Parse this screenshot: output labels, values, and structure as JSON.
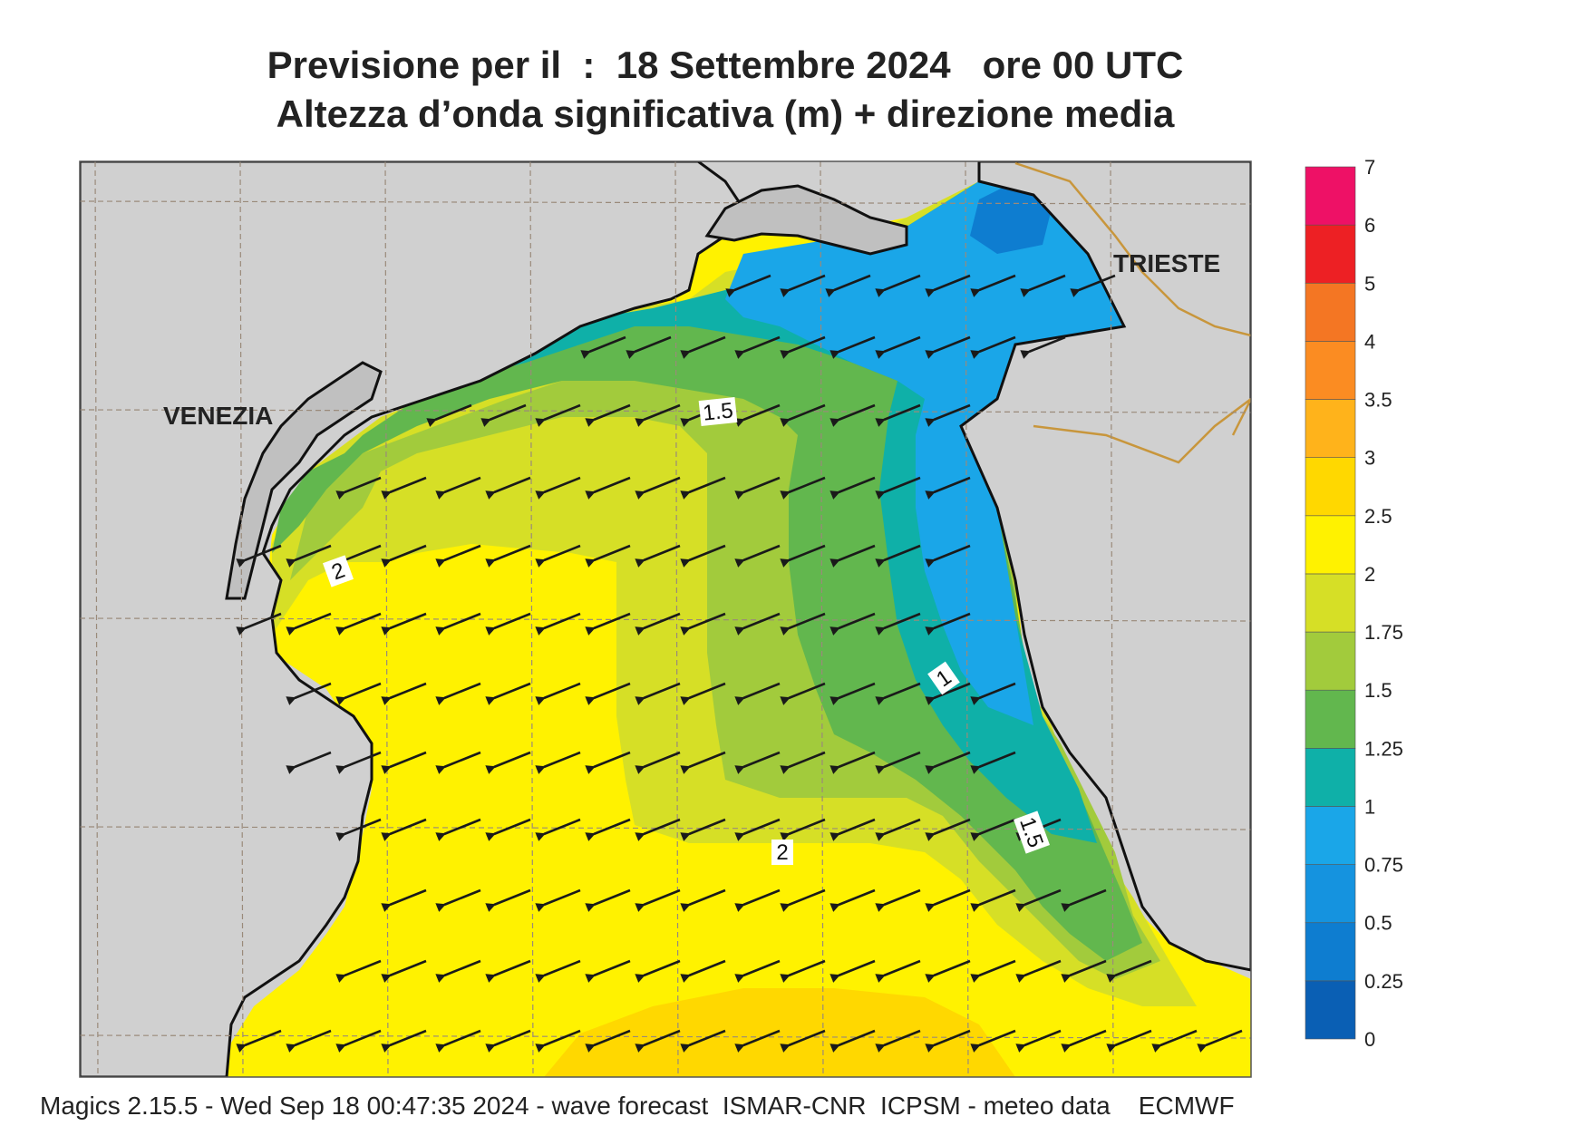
{
  "title": {
    "line1": "Previsione per il  :  18 Settembre 2024   ore 00 UTC",
    "line2": "Altezza d’onda significativa (m) + direzione media"
  },
  "map": {
    "cities": [
      {
        "name": "VENEZIA"
      },
      {
        "name": "TRIESTE"
      }
    ],
    "contour_labels": [
      "1.5",
      "2",
      "1",
      "2",
      "1.5"
    ],
    "arrow_direction": "south-west",
    "colors": {
      "land": "#d0d0d0",
      "coast": "#111111",
      "border": "#c8963c",
      "grid": "#9a8a7a",
      "arrow": "#1a1a1a"
    }
  },
  "legend": {
    "labels": [
      "0",
      "0.25",
      "0.5",
      "0.75",
      "1",
      "1.25",
      "1.5",
      "1.75",
      "2",
      "2.5",
      "3",
      "3.5",
      "4",
      "5",
      "6",
      "7"
    ],
    "colors": [
      "#0a5fb4",
      "#0e7dd0",
      "#1593df",
      "#1aa6e8",
      "#0fb0a8",
      "#62b74e",
      "#a2cb3c",
      "#d6df26",
      "#fff200",
      "#ffd800",
      "#ffb31b",
      "#fb8c22",
      "#f47623",
      "#ed2024",
      "#ee1166"
    ]
  },
  "footer": "Magics 2.15.5 - Wed Sep 18 00:47:35 2024 - wave forecast  ISMAR-CNR  ICPSM - meteo data    ECMWF"
}
